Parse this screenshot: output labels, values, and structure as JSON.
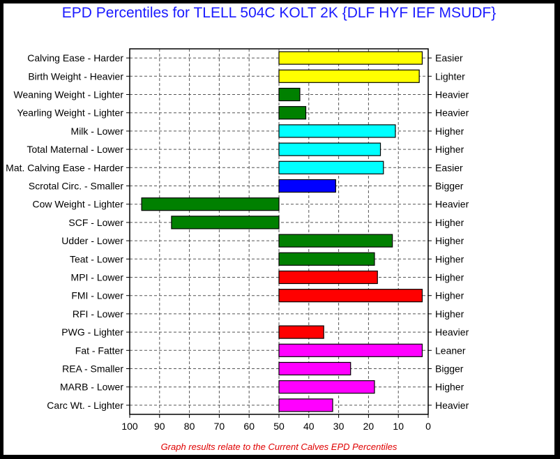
{
  "title": "EPD Percentiles for TLELL 504C KOLT 2K {DLF HYF IEF MSUDF}",
  "footer": "Graph results relate to the Current Calves EPD Percentiles",
  "chart_data": {
    "type": "bar",
    "orientation": "horizontal",
    "baseline": 50,
    "xlim": [
      100,
      0
    ],
    "x_ticks": [
      "100",
      "90",
      "80",
      "70",
      "60",
      "50",
      "40",
      "30",
      "20",
      "10",
      "0"
    ],
    "grid": true,
    "categories": [
      {
        "left": "Calving Ease - Harder",
        "right": "Easier",
        "value": 2,
        "color": "#ffff00"
      },
      {
        "left": "Birth Weight - Heavier",
        "right": "Lighter",
        "value": 3,
        "color": "#ffff00"
      },
      {
        "left": "Weaning Weight - Lighter",
        "right": "Heavier",
        "value": 43,
        "color": "#008000"
      },
      {
        "left": "Yearling Weight - Lighter",
        "right": "Heavier",
        "value": 41,
        "color": "#008000"
      },
      {
        "left": "Milk - Lower",
        "right": "Higher",
        "value": 11,
        "color": "#00ffff"
      },
      {
        "left": "Total Maternal - Lower",
        "right": "Higher",
        "value": 16,
        "color": "#00ffff"
      },
      {
        "left": "Mat. Calving Ease - Harder",
        "right": "Easier",
        "value": 15,
        "color": "#00ffff"
      },
      {
        "left": "Scrotal Circ. - Smaller",
        "right": "Bigger",
        "value": 31,
        "color": "#0000ff"
      },
      {
        "left": "Cow Weight - Lighter",
        "right": "Heavier",
        "value": 96,
        "color": "#008000"
      },
      {
        "left": "SCF - Lower",
        "right": "Higher",
        "value": 86,
        "color": "#008000"
      },
      {
        "left": "Udder - Lower",
        "right": "Higher",
        "value": 12,
        "color": "#008000"
      },
      {
        "left": "Teat - Lower",
        "right": "Higher",
        "value": 18,
        "color": "#008000"
      },
      {
        "left": "MPI - Lower",
        "right": "Higher",
        "value": 17,
        "color": "#ff0000"
      },
      {
        "left": "FMI - Lower",
        "right": "Higher",
        "value": 2,
        "color": "#ff0000"
      },
      {
        "left": "RFI - Lower",
        "right": "Higher",
        "value": null,
        "color": "#ff0000"
      },
      {
        "left": "PWG - Lighter",
        "right": "Heavier",
        "value": 35,
        "color": "#ff0000"
      },
      {
        "left": "Fat - Fatter",
        "right": "Leaner",
        "value": 2,
        "color": "#ff00ff"
      },
      {
        "left": "REA - Smaller",
        "right": "Bigger",
        "value": 26,
        "color": "#ff00ff"
      },
      {
        "left": "MARB - Lower",
        "right": "Higher",
        "value": 18,
        "color": "#ff00ff"
      },
      {
        "left": "Carc Wt. - Lighter",
        "right": "Heavier",
        "value": 32,
        "color": "#ff00ff"
      }
    ]
  }
}
